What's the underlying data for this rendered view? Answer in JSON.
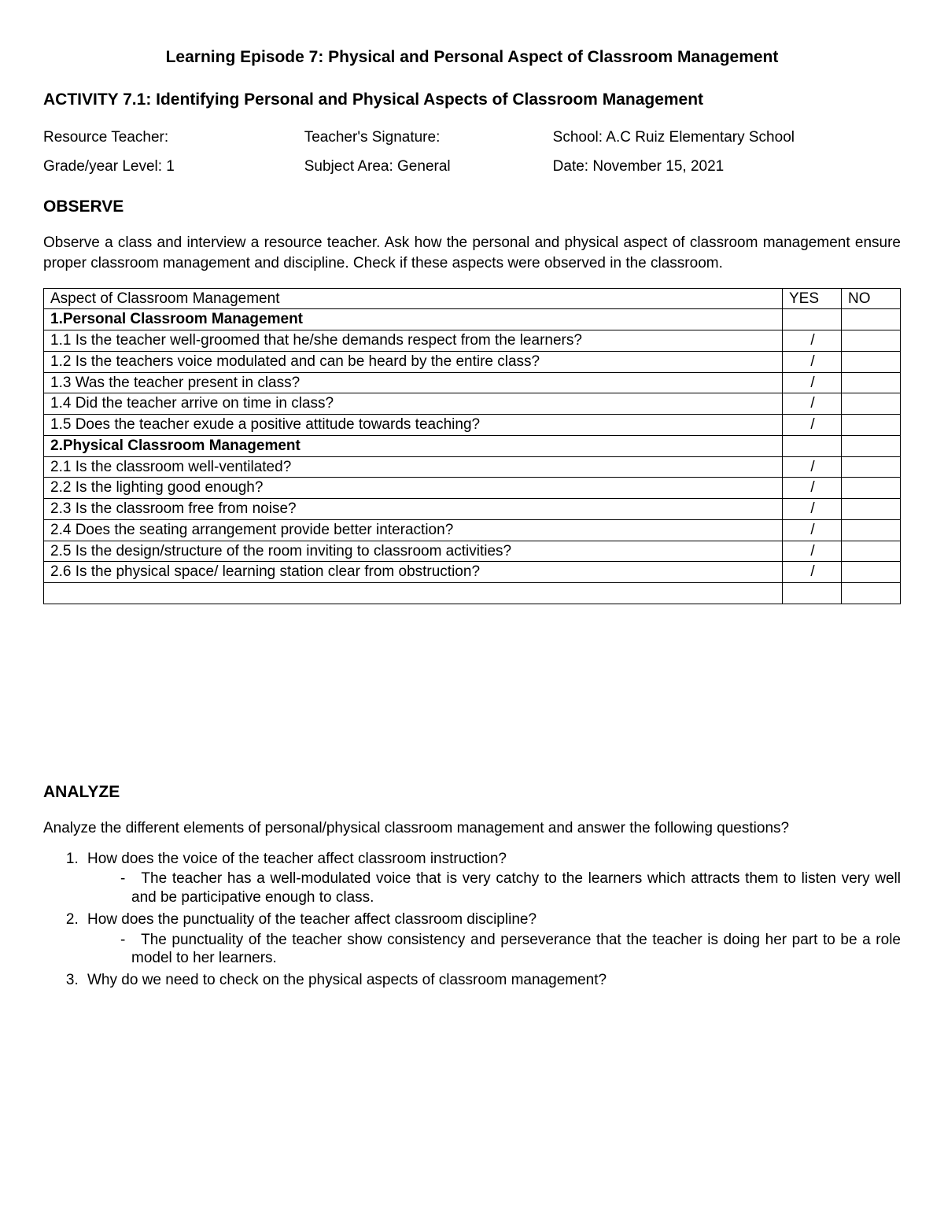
{
  "title": "Learning Episode 7: Physical and Personal Aspect of Classroom Management",
  "subtitle": "ACTIVITY 7.1: Identifying Personal and Physical Aspects of Classroom Management",
  "info": {
    "row1": {
      "a": "Resource Teacher:",
      "b": "Teacher's Signature:",
      "c": "School: A.C Ruiz Elementary School"
    },
    "row2": {
      "a": "Grade/year Level: 1",
      "b": "Subject Area: General",
      "c": "Date: November 15, 2021"
    }
  },
  "observe": {
    "header": "OBSERVE",
    "para": "Observe a class and interview a resource teacher. Ask how the personal and physical aspect of classroom management ensure proper classroom management and discipline.  Check if these aspects were observed in the classroom."
  },
  "table": {
    "columns": {
      "aspect": "Aspect of Classroom Management",
      "yes": "YES",
      "no": "NO"
    },
    "rows": [
      {
        "text": "1.Personal Classroom Management",
        "yes": "",
        "no": "",
        "bold": true
      },
      {
        "text": "1.1 Is the teacher well-groomed that he/she demands respect from the learners?",
        "yes": "/",
        "no": ""
      },
      {
        "text": "1.2 Is the teachers voice modulated and can be heard by the entire class?",
        "yes": "/",
        "no": ""
      },
      {
        "text": "1.3 Was the teacher present in class?",
        "yes": "/",
        "no": ""
      },
      {
        "text": "1.4 Did the teacher arrive on time in class?",
        "yes": "/",
        "no": ""
      },
      {
        "text": "1.5 Does the teacher exude a positive attitude towards teaching?",
        "yes": "/",
        "no": ""
      },
      {
        "text": "2.Physical Classroom Management",
        "yes": "",
        "no": "",
        "bold": true
      },
      {
        "text": "2.1 Is the classroom well-ventilated?",
        "yes": "/",
        "no": ""
      },
      {
        "text": "2.2 Is the lighting good enough?",
        "yes": "/",
        "no": ""
      },
      {
        "text": "2.3 Is the classroom free from noise?",
        "yes": "/",
        "no": ""
      },
      {
        "text": "2.4 Does the seating arrangement provide better interaction?",
        "yes": "/",
        "no": ""
      },
      {
        "text": "2.5 Is the design/structure of the room inviting to classroom activities?",
        "yes": "/",
        "no": ""
      },
      {
        "text": "2.6 Is the physical space/ learning station clear from obstruction?",
        "yes": "/",
        "no": ""
      },
      {
        "text": "",
        "yes": "",
        "no": ""
      }
    ]
  },
  "analyze": {
    "header": "ANALYZE",
    "para": "Analyze the different elements of personal/physical classroom management and answer the following questions?",
    "questions": [
      {
        "q": "How does the voice of the teacher affect classroom instruction?",
        "a": "The teacher has a well-modulated voice that is very catchy to the learners which attracts them to listen very well and be participative enough to class."
      },
      {
        "q": "How does the punctuality of the teacher affect classroom discipline?",
        "a": "The punctuality of the teacher show consistency and perseverance that the teacher is doing her part to be a role model to her learners."
      },
      {
        "q": "Why do we need to check on the physical aspects of classroom management?",
        "a": null
      }
    ]
  }
}
